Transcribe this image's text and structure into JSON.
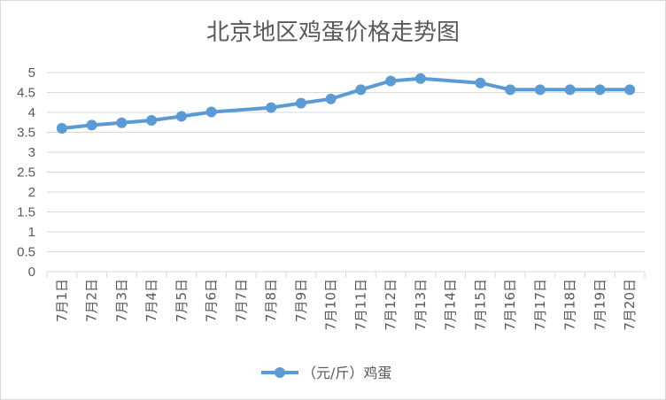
{
  "chart_data": {
    "type": "line",
    "title": "北京地区鸡蛋价格走势图",
    "categories": [
      "7月1日",
      "7月2日",
      "7月3日",
      "7月4日",
      "7月5日",
      "7月6日",
      "7月7日",
      "7月8日",
      "7月9日",
      "7月10日",
      "7月11日",
      "7月12日",
      "7月13日",
      "7月14日",
      "7月15日",
      "7月16日",
      "7月17日",
      "7月18日",
      "7月19日",
      "7月20日"
    ],
    "series": [
      {
        "name": "（元/斤）鸡蛋",
        "values": [
          3.6,
          3.68,
          3.74,
          3.8,
          3.9,
          4.01,
          null,
          4.12,
          4.23,
          4.34,
          4.57,
          4.79,
          4.85,
          null,
          4.74,
          4.57,
          4.57,
          4.57,
          4.57,
          4.57
        ]
      }
    ],
    "ylim": [
      0,
      5
    ],
    "yticks": [
      "0",
      "0.5",
      "1",
      "1.5",
      "2",
      "2.5",
      "3",
      "3.5",
      "4",
      "4.5",
      "5"
    ],
    "grid": true,
    "legend_position": "bottom",
    "colors": {
      "series": "#5b9bd5",
      "grid": "#d9d9d9",
      "text": "#595959"
    }
  }
}
